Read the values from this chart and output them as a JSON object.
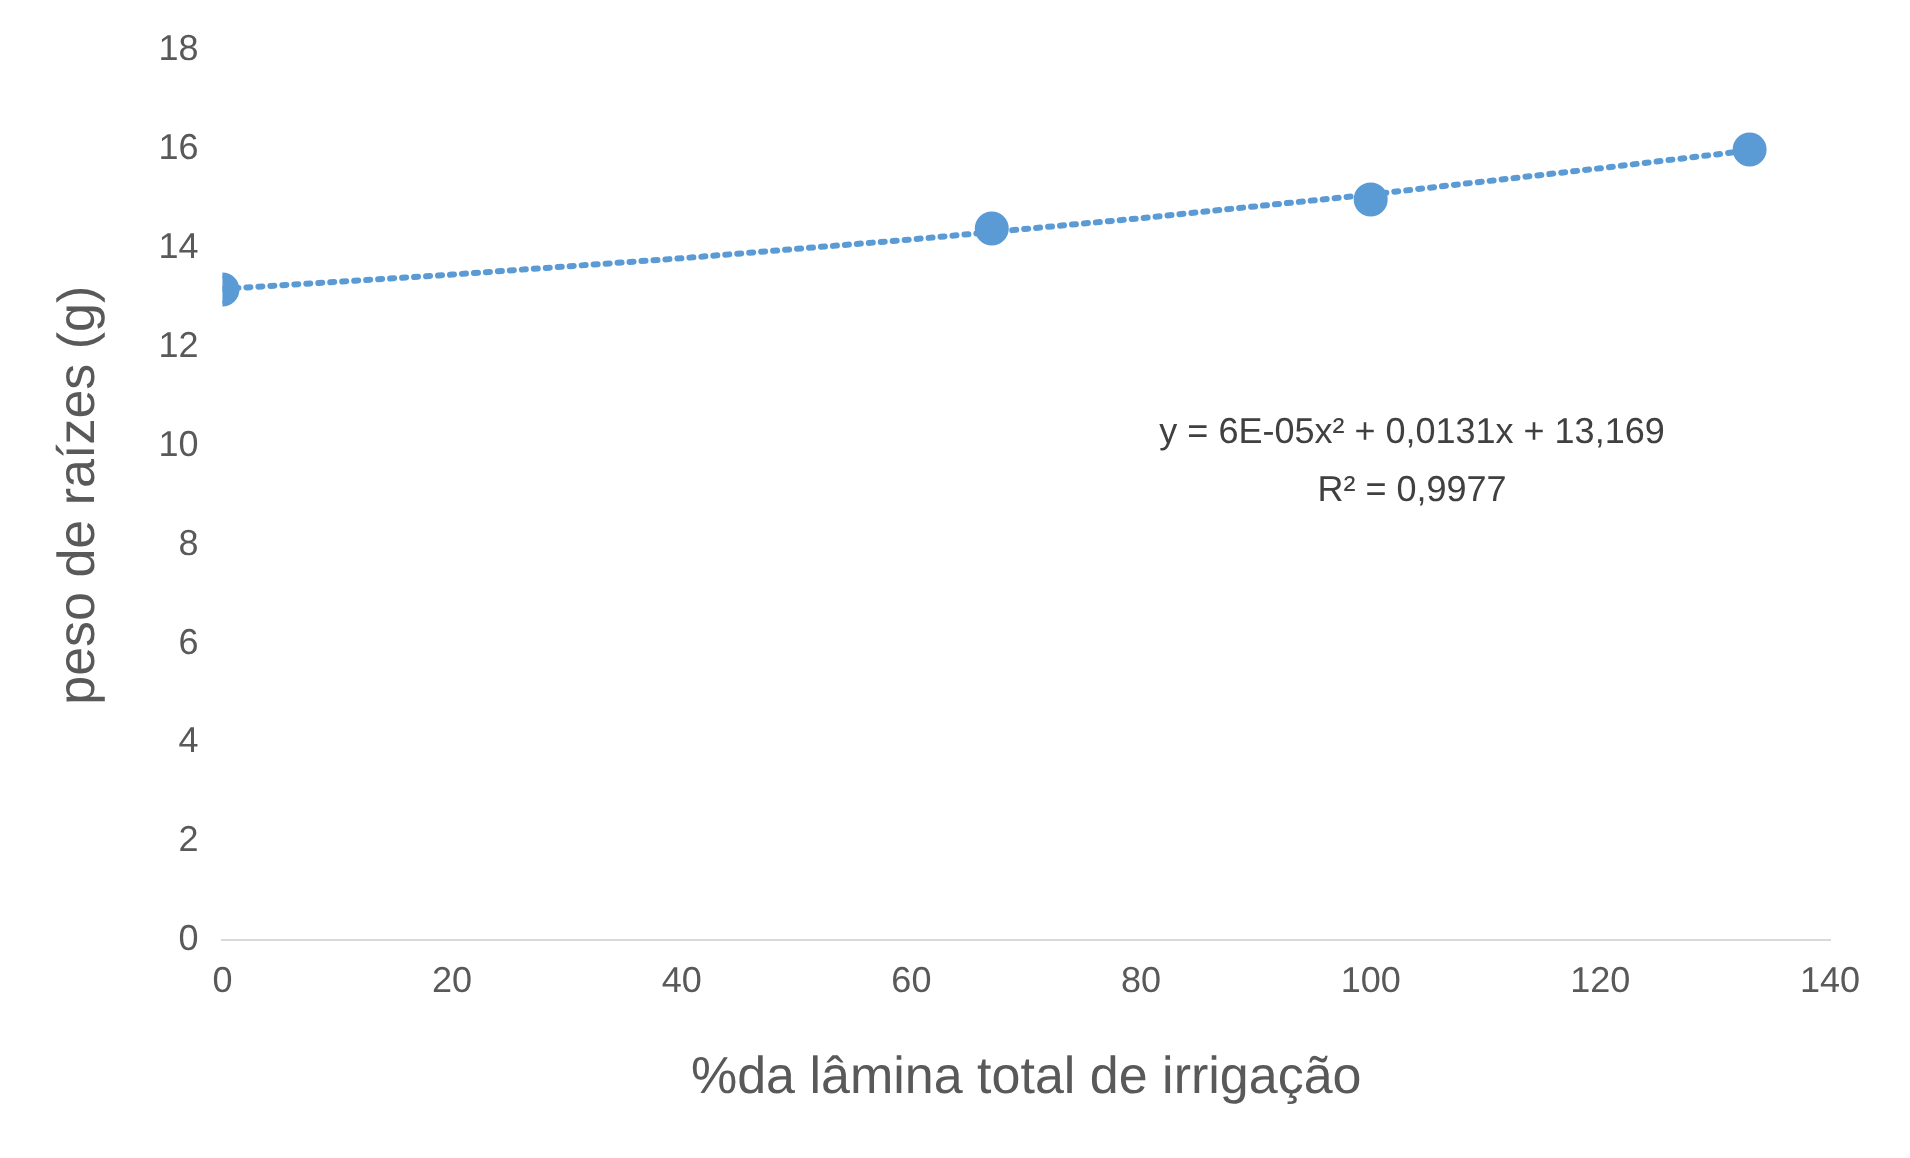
{
  "chart_data": {
    "type": "scatter",
    "xlabel": "%da lâmina total de irrigação",
    "ylabel": "peso de raízes (g)",
    "xlim": [
      0,
      140
    ],
    "xticks": [
      0,
      20,
      40,
      60,
      80,
      100,
      120,
      140
    ],
    "ylim": [
      0,
      18
    ],
    "yticks": [
      0,
      2,
      4,
      6,
      8,
      10,
      12,
      14,
      16,
      18
    ],
    "grid": false,
    "legend": false,
    "series": [
      {
        "type": "line",
        "color": "#5b9bd5",
        "line_style": "dotted",
        "marker": "none",
        "x": [
          0,
          20,
          40,
          60,
          80,
          100,
          120,
          133
        ],
        "values": [
          13.17,
          13.46,
          13.79,
          14.17,
          14.6,
          15.08,
          15.61,
          15.97
        ]
      },
      {
        "type": "scatter",
        "color": "#5b9bd5",
        "marker": "circle",
        "x": [
          0,
          67,
          100,
          133
        ],
        "values": [
          13.16,
          14.39,
          14.98,
          15.99
        ]
      }
    ],
    "annotations": [
      "y = 6E-05x² + 0,0131x + 13,169",
      "R² = 0,9977"
    ]
  }
}
